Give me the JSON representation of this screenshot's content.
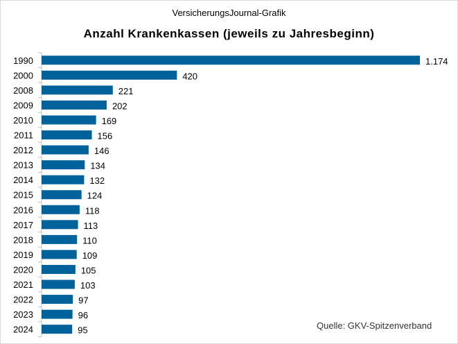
{
  "chart_data": {
    "type": "bar",
    "orientation": "horizontal",
    "subtitle": "VersicherungsJournal-Grafik",
    "title": "Anzahl  Krankenkassen  (jeweils zu Jahresbeginn)",
    "source": "Quelle:  GKV-Spitzenverband",
    "categories": [
      "1990",
      "2000",
      "2008",
      "2009",
      "2010",
      "2011",
      "2012",
      "2013",
      "2014",
      "2015",
      "2016",
      "2017",
      "2018",
      "2019",
      "2020",
      "2021",
      "2022",
      "2023",
      "2024"
    ],
    "values": [
      1174,
      420,
      221,
      202,
      169,
      156,
      146,
      134,
      132,
      124,
      118,
      113,
      110,
      109,
      105,
      103,
      97,
      96,
      95
    ],
    "data_labels": [
      "1.174",
      "420",
      "221",
      "202",
      "169",
      "156",
      "146",
      "134",
      "132",
      "124",
      "118",
      "113",
      "110",
      "109",
      "105",
      "103",
      "97",
      "96",
      "95"
    ],
    "xlim": [
      0,
      1174
    ],
    "grid": false,
    "legend": "none",
    "bar_color": "#00629b"
  }
}
